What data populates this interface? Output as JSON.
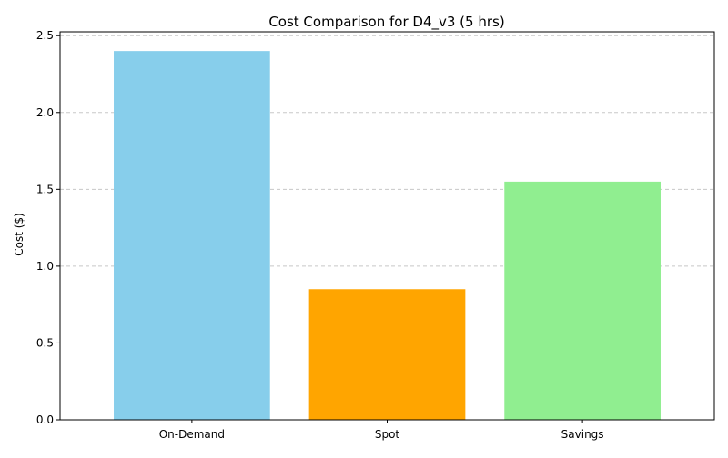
{
  "chart_data": {
    "type": "bar",
    "title": "Cost Comparison for D4_v3 (5 hrs)",
    "xlabel": "",
    "ylabel": "Cost ($)",
    "categories": [
      "On-Demand",
      "Spot",
      "Savings"
    ],
    "values": [
      2.4,
      0.85,
      1.55
    ],
    "colors": [
      "#87ceeb",
      "#ffa500",
      "#90ee90"
    ],
    "ylim": [
      0,
      2.525
    ],
    "yticks": [
      0.0,
      0.5,
      1.0,
      1.5,
      2.0,
      2.5
    ],
    "ytick_labels": [
      "0.0",
      "0.5",
      "1.0",
      "1.5",
      "2.0",
      "2.5"
    ],
    "grid": "y-dashed",
    "grid_color": "#c8c8c8"
  }
}
